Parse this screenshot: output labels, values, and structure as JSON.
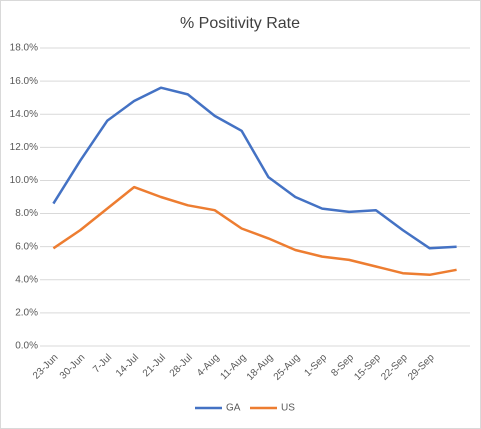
{
  "chart_data": {
    "type": "line",
    "title": "% Positivity Rate",
    "categories": [
      "23-Jun",
      "30-Jun",
      "7-Jul",
      "14-Jul",
      "21-Jul",
      "28-Jul",
      "4-Aug",
      "11-Aug",
      "18-Aug",
      "25-Aug",
      "1-Sep",
      "8-Sep",
      "15-Sep",
      "22-Sep",
      "29-Sep",
      null
    ],
    "series": [
      {
        "name": "GA",
        "color": "#4472c4",
        "values": [
          8.6,
          11.2,
          13.6,
          14.8,
          15.6,
          15.2,
          13.9,
          13.0,
          10.2,
          9.0,
          8.3,
          8.1,
          8.2,
          7.0,
          5.9,
          6.0
        ]
      },
      {
        "name": "US",
        "color": "#ed7d31",
        "values": [
          5.9,
          7.0,
          8.3,
          9.6,
          9.0,
          8.5,
          8.2,
          7.1,
          6.5,
          5.8,
          5.4,
          5.2,
          4.8,
          4.4,
          4.3,
          4.6
        ]
      }
    ],
    "ylim": [
      0,
      18
    ],
    "yticks": [
      {
        "value": 0,
        "label": "0.0%"
      },
      {
        "value": 2,
        "label": "2.0%"
      },
      {
        "value": 4,
        "label": "4.0%"
      },
      {
        "value": 6,
        "label": "6.0%"
      },
      {
        "value": 8,
        "label": "8.0%"
      },
      {
        "value": 10,
        "label": "10.0%"
      },
      {
        "value": 12,
        "label": "12.0%"
      },
      {
        "value": 14,
        "label": "14.0%"
      },
      {
        "value": 16,
        "label": "16.0%"
      },
      {
        "value": 18,
        "label": "18.0%"
      }
    ],
    "grid": true,
    "legend": "bottom"
  }
}
